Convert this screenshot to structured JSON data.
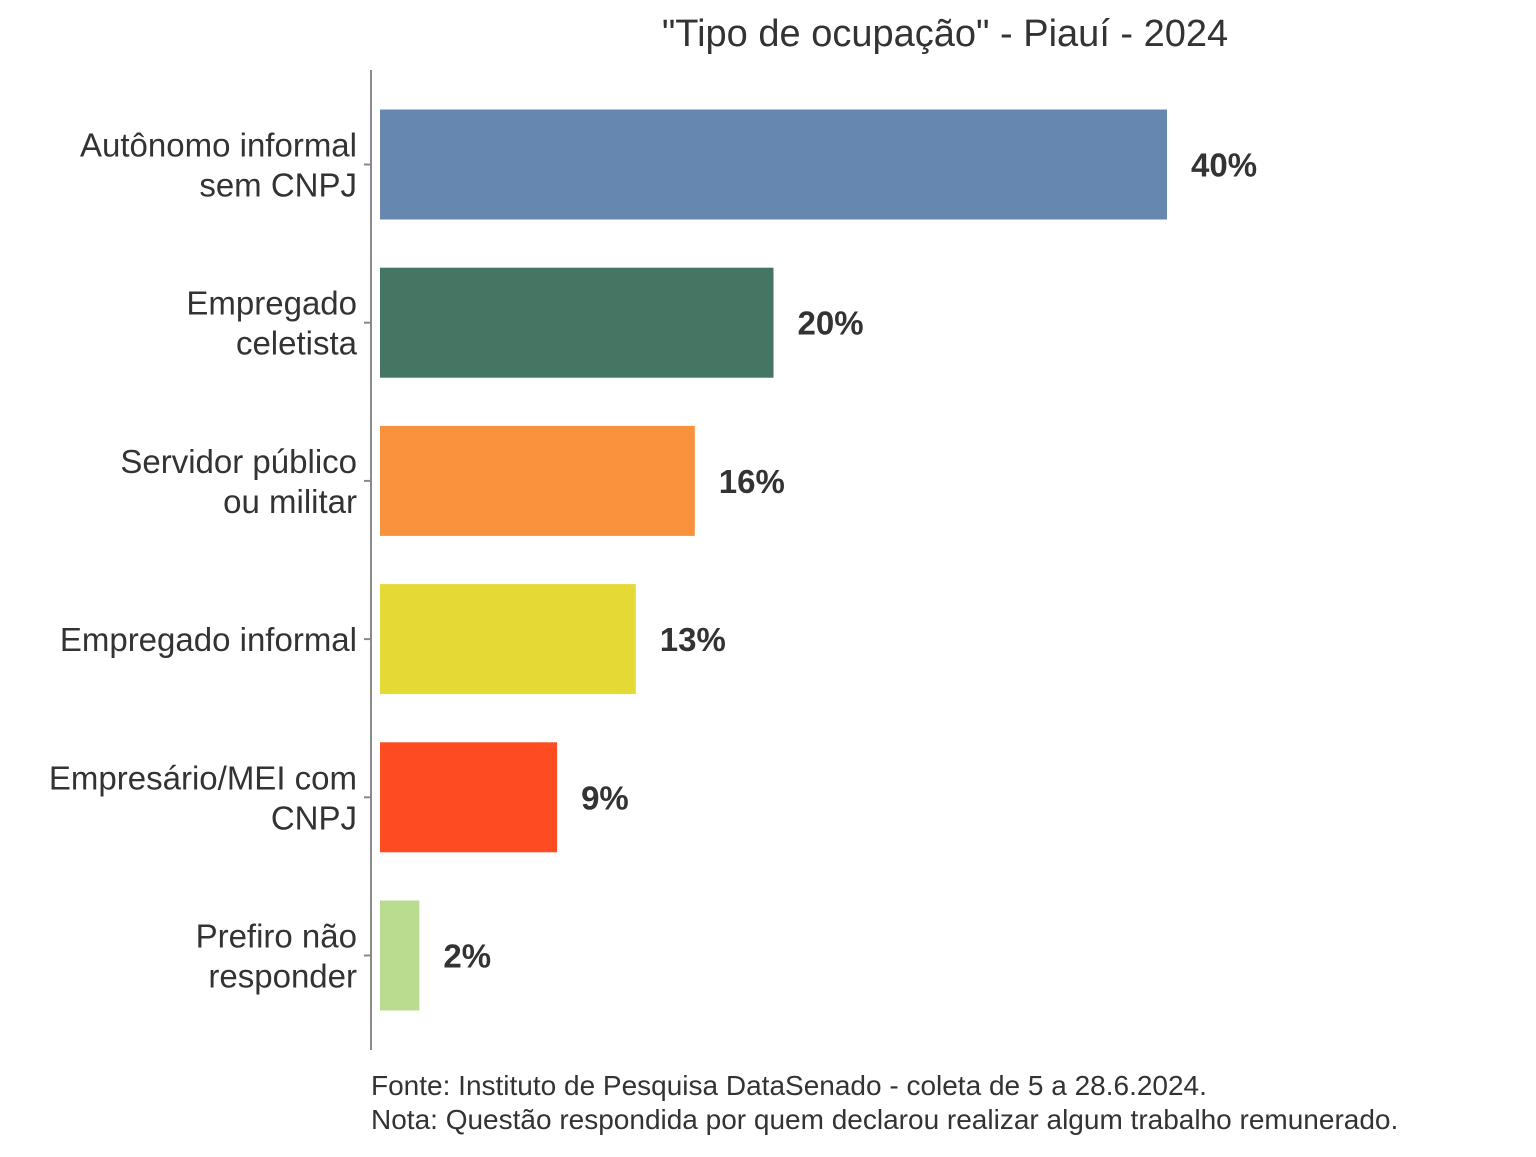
{
  "chart_data": {
    "type": "bar",
    "orientation": "horizontal",
    "title": "\"Tipo de ocupação\" - Piauí - 2024",
    "xlabel": "",
    "ylabel": "",
    "grid": false,
    "legend": "none",
    "xlim": [
      0,
      45
    ],
    "categories": [
      [
        "Autônomo informal",
        "sem CNPJ"
      ],
      [
        "Empregado",
        "celetista"
      ],
      [
        "Servidor público",
        "ou militar"
      ],
      [
        "Empregado informal"
      ],
      [
        "Empresário/MEI com",
        "CNPJ"
      ],
      [
        "Prefiro não",
        "responder"
      ]
    ],
    "values": [
      40,
      20,
      16,
      13,
      9,
      2
    ],
    "labels": [
      "40%",
      "20%",
      "16%",
      "13%",
      "9%",
      "2%"
    ],
    "colors": [
      "#6688b0",
      "#457563",
      "#f9923d",
      "#e5d936",
      "#ff4b22",
      "#b9dc8f"
    ]
  },
  "footer": {
    "source": "Fonte: Instituto de Pesquisa DataSenado - coleta de 5 a 28.6.2024.",
    "note": "Nota: Questão respondida por quem declarou realizar algum trabalho remunerado."
  }
}
